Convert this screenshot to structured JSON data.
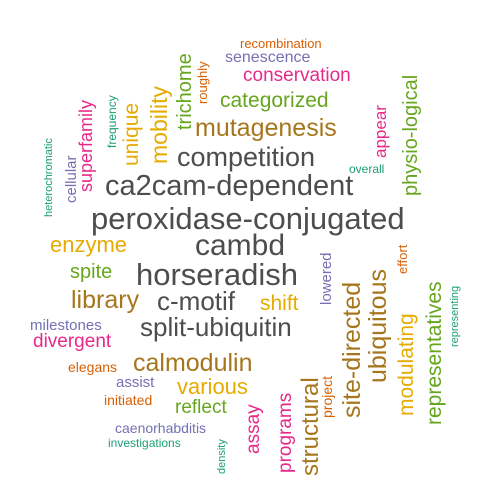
{
  "palette": {
    "gray": "#4d4d4d",
    "brown": "#a6761d",
    "orange": "#d95f02",
    "green": "#66a61e",
    "magenta": "#e7298a",
    "purple": "#7570b3",
    "teal": "#1b9e77",
    "gold": "#e6ab02"
  },
  "words": [
    {
      "text": "peroxidase-conjugated",
      "color": "#4d4d4d"
    },
    {
      "text": "ca2cam-dependent",
      "color": "#4d4d4d"
    },
    {
      "text": "horseradish",
      "color": "#4d4d4d"
    },
    {
      "text": "competition",
      "color": "#4d4d4d"
    },
    {
      "text": "cambd",
      "color": "#4d4d4d"
    },
    {
      "text": "split-ubiquitin",
      "color": "#4d4d4d"
    },
    {
      "text": "c-motif",
      "color": "#4d4d4d"
    },
    {
      "text": "mutagenesis",
      "color": "#a6761d"
    },
    {
      "text": "site-directed",
      "color": "#a6761d"
    },
    {
      "text": "ubiquitous",
      "color": "#a6761d"
    },
    {
      "text": "calmodulin",
      "color": "#a6761d"
    },
    {
      "text": "library",
      "color": "#a6761d"
    },
    {
      "text": "structural",
      "color": "#a6761d"
    },
    {
      "text": "modulating",
      "color": "#e6ab02"
    },
    {
      "text": "representatives",
      "color": "#66a61e"
    },
    {
      "text": "physio-logical",
      "color": "#66a61e"
    },
    {
      "text": "categorized",
      "color": "#66a61e"
    },
    {
      "text": "conservation",
      "color": "#e7298a"
    },
    {
      "text": "enzyme",
      "color": "#e6ab02"
    },
    {
      "text": "mobility",
      "color": "#e6ab02"
    },
    {
      "text": "unique",
      "color": "#e6ab02"
    },
    {
      "text": "trichome",
      "color": "#66a61e"
    },
    {
      "text": "superfamily",
      "color": "#e7298a"
    },
    {
      "text": "various",
      "color": "#e6ab02"
    },
    {
      "text": "shift",
      "color": "#e6ab02"
    },
    {
      "text": "spite",
      "color": "#66a61e"
    },
    {
      "text": "divergent",
      "color": "#e7298a"
    },
    {
      "text": "reflect",
      "color": "#66a61e"
    },
    {
      "text": "programs",
      "color": "#e7298a"
    },
    {
      "text": "assay",
      "color": "#e7298a"
    },
    {
      "text": "appear",
      "color": "#e7298a"
    },
    {
      "text": "senescence",
      "color": "#7570b3"
    },
    {
      "text": "milestones",
      "color": "#7570b3"
    },
    {
      "text": "cellular",
      "color": "#7570b3"
    },
    {
      "text": "assist",
      "color": "#7570b3"
    },
    {
      "text": "caenorhabditis",
      "color": "#7570b3"
    },
    {
      "text": "lowered",
      "color": "#7570b3"
    },
    {
      "text": "recombination",
      "color": "#d95f02"
    },
    {
      "text": "roughly",
      "color": "#d95f02"
    },
    {
      "text": "elegans",
      "color": "#d95f02"
    },
    {
      "text": "initiated",
      "color": "#d95f02"
    },
    {
      "text": "project",
      "color": "#d95f02"
    },
    {
      "text": "effort",
      "color": "#d95f02"
    },
    {
      "text": "overall",
      "color": "#1b9e77"
    },
    {
      "text": "frequency",
      "color": "#1b9e77"
    },
    {
      "text": "heterochromatic",
      "color": "#1b9e77"
    },
    {
      "text": "investigations",
      "color": "#1b9e77"
    },
    {
      "text": "density",
      "color": "#1b9e77"
    },
    {
      "text": "representing",
      "color": "#1b9e77"
    }
  ]
}
